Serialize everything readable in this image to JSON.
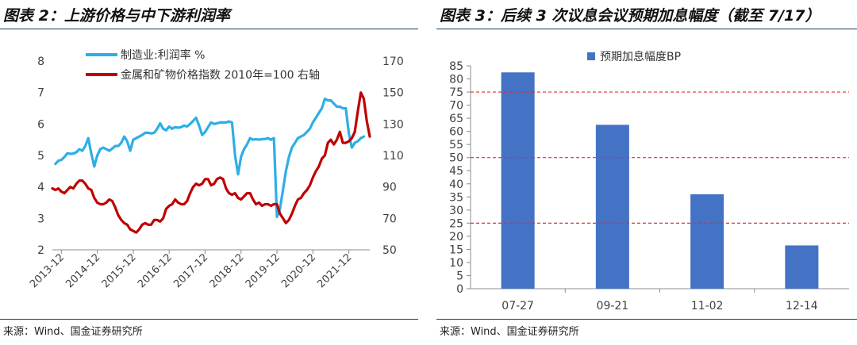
{
  "left_panel": {
    "title": "图表 2：上游价格与中下游利润率",
    "source": "来源：Wind、国金证券研究所"
  },
  "right_panel": {
    "title": "图表 3：后续 3 次议息会议预期加息幅度（截至 7/17）",
    "source": "来源：Wind、国金证券研究所"
  },
  "chart_data": [
    {
      "type": "line",
      "title": "",
      "x_tick_labels": [
        "2013-12",
        "2014-12",
        "2015-12",
        "2016-12",
        "2017-12",
        "2018-12",
        "2019-12",
        "2020-12",
        "2021-12"
      ],
      "xlim": [
        "2013-09",
        "2022-07"
      ],
      "y_left": {
        "label": "",
        "ylim": [
          2,
          8
        ],
        "ticks": [
          2,
          3,
          4,
          5,
          6,
          7,
          8
        ]
      },
      "y_right": {
        "label": "",
        "ylim": [
          50,
          170
        ],
        "ticks": [
          50,
          70,
          90,
          110,
          130,
          150,
          170
        ]
      },
      "grid": false,
      "legend_position": "top",
      "series": [
        {
          "name": "制造业:利润率 %",
          "axis": "left",
          "color": "#2eaee6",
          "points": [
            [
              "2013-10",
              4.73
            ],
            [
              "2013-11",
              4.83
            ],
            [
              "2013-12",
              4.86
            ],
            [
              "2014-01",
              4.95
            ],
            [
              "2014-02",
              5.07
            ],
            [
              "2014-03",
              5.05
            ],
            [
              "2014-04",
              5.06
            ],
            [
              "2014-05",
              5.1
            ],
            [
              "2014-06",
              5.2
            ],
            [
              "2014-07",
              5.15
            ],
            [
              "2014-08",
              5.3
            ],
            [
              "2014-09",
              5.55
            ],
            [
              "2014-10",
              5.05
            ],
            [
              "2014-11",
              4.65
            ],
            [
              "2014-12",
              5.0
            ],
            [
              "2015-01",
              5.2
            ],
            [
              "2015-02",
              5.25
            ],
            [
              "2015-03",
              5.2
            ],
            [
              "2015-04",
              5.15
            ],
            [
              "2015-05",
              5.22
            ],
            [
              "2015-06",
              5.3
            ],
            [
              "2015-07",
              5.3
            ],
            [
              "2015-08",
              5.4
            ],
            [
              "2015-09",
              5.6
            ],
            [
              "2015-10",
              5.45
            ],
            [
              "2015-11",
              5.15
            ],
            [
              "2015-12",
              5.5
            ],
            [
              "2016-01",
              5.55
            ],
            [
              "2016-02",
              5.6
            ],
            [
              "2016-03",
              5.65
            ],
            [
              "2016-04",
              5.72
            ],
            [
              "2016-05",
              5.72
            ],
            [
              "2016-06",
              5.7
            ],
            [
              "2016-07",
              5.72
            ],
            [
              "2016-08",
              5.85
            ],
            [
              "2016-09",
              6.02
            ],
            [
              "2016-10",
              5.85
            ],
            [
              "2016-11",
              5.8
            ],
            [
              "2016-12",
              5.92
            ],
            [
              "2017-01",
              5.85
            ],
            [
              "2017-02",
              5.9
            ],
            [
              "2017-03",
              5.88
            ],
            [
              "2017-04",
              5.9
            ],
            [
              "2017-05",
              5.95
            ],
            [
              "2017-06",
              5.92
            ],
            [
              "2017-07",
              6.0
            ],
            [
              "2017-08",
              6.1
            ],
            [
              "2017-09",
              6.2
            ],
            [
              "2017-10",
              5.95
            ],
            [
              "2017-11",
              5.65
            ],
            [
              "2017-12",
              5.75
            ],
            [
              "2018-01",
              5.9
            ],
            [
              "2018-02",
              6.05
            ],
            [
              "2018-03",
              6.0
            ],
            [
              "2018-04",
              6.02
            ],
            [
              "2018-05",
              6.05
            ],
            [
              "2018-06",
              6.05
            ],
            [
              "2018-07",
              6.05
            ],
            [
              "2018-08",
              6.08
            ],
            [
              "2018-09",
              6.05
            ],
            [
              "2018-10",
              5.0
            ],
            [
              "2018-11",
              4.4
            ],
            [
              "2018-12",
              4.95
            ],
            [
              "2019-01",
              5.2
            ],
            [
              "2019-02",
              5.35
            ],
            [
              "2019-03",
              5.55
            ],
            [
              "2019-04",
              5.5
            ],
            [
              "2019-05",
              5.52
            ],
            [
              "2019-06",
              5.5
            ],
            [
              "2019-07",
              5.52
            ],
            [
              "2019-08",
              5.52
            ],
            [
              "2019-09",
              5.55
            ],
            [
              "2019-10",
              5.5
            ],
            [
              "2019-11",
              5.55
            ],
            [
              "2019-12",
              3.05
            ],
            [
              "2020-01",
              3.3
            ],
            [
              "2020-02",
              3.9
            ],
            [
              "2020-03",
              4.5
            ],
            [
              "2020-04",
              4.95
            ],
            [
              "2020-05",
              5.25
            ],
            [
              "2020-06",
              5.4
            ],
            [
              "2020-07",
              5.55
            ],
            [
              "2020-08",
              5.6
            ],
            [
              "2020-09",
              5.65
            ],
            [
              "2020-10",
              5.75
            ],
            [
              "2020-11",
              5.85
            ],
            [
              "2020-12",
              6.05
            ],
            [
              "2021-01",
              6.2
            ],
            [
              "2021-02",
              6.35
            ],
            [
              "2021-03",
              6.5
            ],
            [
              "2021-04",
              6.8
            ],
            [
              "2021-05",
              6.75
            ],
            [
              "2021-06",
              6.75
            ],
            [
              "2021-07",
              6.65
            ],
            [
              "2021-08",
              6.55
            ],
            [
              "2021-09",
              6.55
            ],
            [
              "2021-10",
              6.5
            ],
            [
              "2021-11",
              6.5
            ],
            [
              "2021-12",
              5.7
            ],
            [
              "2022-01",
              5.25
            ],
            [
              "2022-02",
              5.4
            ],
            [
              "2022-03",
              5.45
            ],
            [
              "2022-04",
              5.55
            ],
            [
              "2022-05",
              5.6
            ]
          ]
        },
        {
          "name": "金属和矿物价格指数 2010年=100 右轴",
          "axis": "right",
          "color": "#c00000",
          "points": [
            [
              "2013-09",
              89
            ],
            [
              "2013-10",
              88
            ],
            [
              "2013-11",
              89
            ],
            [
              "2013-12",
              87
            ],
            [
              "2014-01",
              86
            ],
            [
              "2014-02",
              88
            ],
            [
              "2014-03",
              90
            ],
            [
              "2014-04",
              89
            ],
            [
              "2014-05",
              92
            ],
            [
              "2014-06",
              94
            ],
            [
              "2014-07",
              94
            ],
            [
              "2014-08",
              92
            ],
            [
              "2014-09",
              89
            ],
            [
              "2014-10",
              88
            ],
            [
              "2014-11",
              83
            ],
            [
              "2014-12",
              80
            ],
            [
              "2015-01",
              79
            ],
            [
              "2015-02",
              79
            ],
            [
              "2015-03",
              80
            ],
            [
              "2015-04",
              82
            ],
            [
              "2015-05",
              81
            ],
            [
              "2015-06",
              77
            ],
            [
              "2015-07",
              72
            ],
            [
              "2015-08",
              69
            ],
            [
              "2015-09",
              67
            ],
            [
              "2015-10",
              66
            ],
            [
              "2015-11",
              63
            ],
            [
              "2015-12",
              62
            ],
            [
              "2016-01",
              61
            ],
            [
              "2016-02",
              63
            ],
            [
              "2016-03",
              66
            ],
            [
              "2016-04",
              67
            ],
            [
              "2016-05",
              66
            ],
            [
              "2016-06",
              66
            ],
            [
              "2016-07",
              69
            ],
            [
              "2016-08",
              69
            ],
            [
              "2016-09",
              68
            ],
            [
              "2016-10",
              70
            ],
            [
              "2016-11",
              76
            ],
            [
              "2016-12",
              78
            ],
            [
              "2017-01",
              79
            ],
            [
              "2017-02",
              82
            ],
            [
              "2017-03",
              80
            ],
            [
              "2017-04",
              79
            ],
            [
              "2017-05",
              79
            ],
            [
              "2017-06",
              81
            ],
            [
              "2017-07",
              86
            ],
            [
              "2017-08",
              90
            ],
            [
              "2017-09",
              92
            ],
            [
              "2017-10",
              91
            ],
            [
              "2017-11",
              92
            ],
            [
              "2017-12",
              95
            ],
            [
              "2018-01",
              95
            ],
            [
              "2018-02",
              91
            ],
            [
              "2018-03",
              92
            ],
            [
              "2018-04",
              95
            ],
            [
              "2018-05",
              96
            ],
            [
              "2018-06",
              95
            ],
            [
              "2018-07",
              89
            ],
            [
              "2018-08",
              86
            ],
            [
              "2018-09",
              85
            ],
            [
              "2018-10",
              86
            ],
            [
              "2018-11",
              83
            ],
            [
              "2018-12",
              82
            ],
            [
              "2019-01",
              84
            ],
            [
              "2019-02",
              86
            ],
            [
              "2019-03",
              86
            ],
            [
              "2019-04",
              82
            ],
            [
              "2019-05",
              79
            ],
            [
              "2019-06",
              80
            ],
            [
              "2019-07",
              78
            ],
            [
              "2019-08",
              79
            ],
            [
              "2019-09",
              79
            ],
            [
              "2019-10",
              78
            ],
            [
              "2019-11",
              79
            ],
            [
              "2019-12",
              79
            ],
            [
              "2020-01",
              73
            ],
            [
              "2020-02",
              70
            ],
            [
              "2020-03",
              67
            ],
            [
              "2020-04",
              69
            ],
            [
              "2020-05",
              73
            ],
            [
              "2020-06",
              78
            ],
            [
              "2020-07",
              82
            ],
            [
              "2020-08",
              83
            ],
            [
              "2020-09",
              86
            ],
            [
              "2020-10",
              88
            ],
            [
              "2020-11",
              91
            ],
            [
              "2020-12",
              96
            ],
            [
              "2021-01",
              100
            ],
            [
              "2021-02",
              103
            ],
            [
              "2021-03",
              108
            ],
            [
              "2021-04",
              110
            ],
            [
              "2021-05",
              118
            ],
            [
              "2021-06",
              120
            ],
            [
              "2021-07",
              117
            ],
            [
              "2021-08",
              120
            ],
            [
              "2021-09",
              125
            ],
            [
              "2021-10",
              118
            ],
            [
              "2021-11",
              118
            ],
            [
              "2021-12",
              119
            ],
            [
              "2022-01",
              121
            ],
            [
              "2022-02",
              125
            ],
            [
              "2022-03",
              138
            ],
            [
              "2022-04",
              150
            ],
            [
              "2022-05",
              146
            ],
            [
              "2022-06",
              132
            ],
            [
              "2022-07",
              122
            ]
          ]
        }
      ]
    },
    {
      "type": "bar",
      "title": "",
      "categories": [
        "07-27",
        "09-21",
        "11-02",
        "12-14"
      ],
      "series": [
        {
          "name": "预期加息幅度BP",
          "color": "#4472c4",
          "values": [
            82.5,
            62.5,
            36,
            16.5
          ]
        }
      ],
      "ylim": [
        0,
        85
      ],
      "y_ticks": [
        0,
        5,
        10,
        15,
        20,
        25,
        30,
        35,
        40,
        45,
        50,
        55,
        60,
        65,
        70,
        75,
        80,
        85
      ],
      "reference_lines": [
        25,
        50,
        75
      ],
      "reference_line_color": "#e03030",
      "grid": false,
      "legend_position": "top"
    }
  ]
}
